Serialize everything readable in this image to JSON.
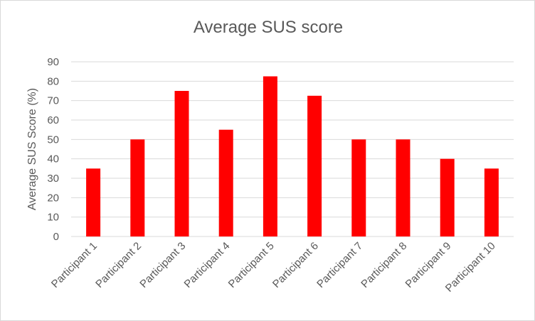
{
  "chart_data": {
    "type": "bar",
    "title": "Average SUS score",
    "xlabel": "",
    "ylabel": "Average SUS Score (%)",
    "categories": [
      "Participant 1",
      "Participant 2",
      "Participant 3",
      "Participant 4",
      "Participant 5",
      "Participant 6",
      "Participant 7",
      "Participant 8",
      "Participant 9",
      "Participant 10"
    ],
    "values": [
      35,
      50,
      75,
      55,
      82.5,
      72.5,
      50,
      50,
      40,
      35
    ],
    "ylim": [
      0,
      90
    ],
    "yticks": [
      "0",
      "10",
      "20",
      "30",
      "40",
      "50",
      "60",
      "70",
      "80",
      "90"
    ],
    "grid": true,
    "legend": "none",
    "colors": {
      "bar": "#ff0000",
      "grid": "#d9d9d9",
      "text": "#595959"
    }
  }
}
